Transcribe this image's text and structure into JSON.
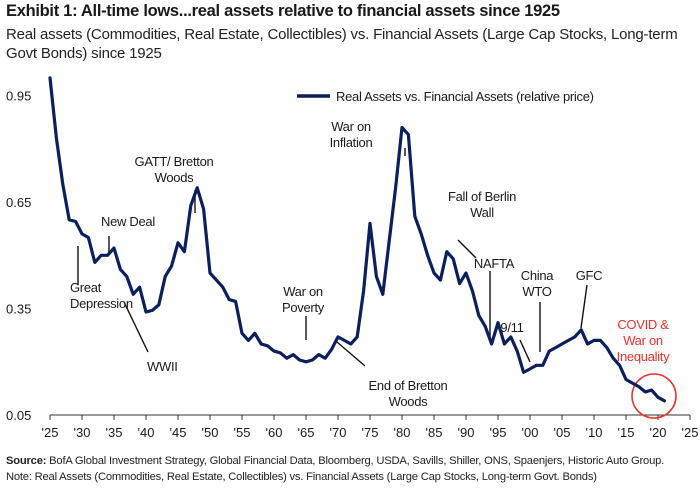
{
  "title": "Exhibit 1: All-time lows...real assets relative to financial assets since 1925",
  "subtitle": "Real assets (Commodities, Real Estate, Collectibles) vs. Financial Assets (Large Cap Stocks, Long-term Govt Bonds) since 1925",
  "footnote": {
    "source_label": "Source:",
    "source_text": " BofA Global Investment Strategy, Global Financial Data, Bloomberg, USDA, Savills, Shiller, ONS, Spaenjers, Historic Auto Group.",
    "note": "Note: Real Assets (Commodities, Real Estate, Collectibles) vs. Financial Assets (Large Cap Stocks, Long-term Govt. Bonds)"
  },
  "colors": {
    "line": "#0b1f5c",
    "highlight": "#e8322e",
    "text": "#1a1a1a"
  },
  "chart_data": {
    "type": "line",
    "legend": {
      "label": "Real Assets vs. Financial Assets (relative price)",
      "position": "top-center"
    },
    "xlim": [
      1925,
      2025
    ],
    "ylim": [
      0.05,
      1.05
    ],
    "grid": false,
    "x_ticks": [
      {
        "value": 1925,
        "label": "'25"
      },
      {
        "value": 1930,
        "label": "'30"
      },
      {
        "value": 1935,
        "label": "'35"
      },
      {
        "value": 1940,
        "label": "'40"
      },
      {
        "value": 1945,
        "label": "'45"
      },
      {
        "value": 1950,
        "label": "'50"
      },
      {
        "value": 1955,
        "label": "'55"
      },
      {
        "value": 1960,
        "label": "'60"
      },
      {
        "value": 1965,
        "label": "'65"
      },
      {
        "value": 1970,
        "label": "'70"
      },
      {
        "value": 1975,
        "label": "'75"
      },
      {
        "value": 1980,
        "label": "'80"
      },
      {
        "value": 1985,
        "label": "'85"
      },
      {
        "value": 1990,
        "label": "'90"
      },
      {
        "value": 1995,
        "label": "'95"
      },
      {
        "value": 2000,
        "label": "'00"
      },
      {
        "value": 2005,
        "label": "'05"
      },
      {
        "value": 2010,
        "label": "'10"
      },
      {
        "value": 2015,
        "label": "'15"
      },
      {
        "value": 2020,
        "label": "'20"
      },
      {
        "value": 2025,
        "label": "'25"
      }
    ],
    "y_ticks": [
      {
        "value": 0.95,
        "label": "0.95"
      },
      {
        "value": 0.65,
        "label": "0.65"
      },
      {
        "value": 0.35,
        "label": "0.35"
      },
      {
        "value": 0.05,
        "label": "0.05"
      }
    ],
    "series": [
      {
        "name": "Real Assets vs. Financial Assets (relative price)",
        "x": [
          1925,
          1926,
          1927,
          1928,
          1929,
          1930,
          1931,
          1932,
          1933,
          1934,
          1935,
          1936,
          1937,
          1938,
          1939,
          1940,
          1941,
          1942,
          1943,
          1944,
          1945,
          1946,
          1947,
          1948,
          1949,
          1950,
          1951,
          1952,
          1953,
          1954,
          1955,
          1956,
          1957,
          1958,
          1959,
          1960,
          1961,
          1962,
          1963,
          1964,
          1965,
          1966,
          1967,
          1968,
          1969,
          1970,
          1971,
          1972,
          1973,
          1974,
          1975,
          1976,
          1977,
          1978,
          1979,
          1980,
          1981,
          1982,
          1983,
          1984,
          1985,
          1986,
          1987,
          1988,
          1989,
          1990,
          1991,
          1992,
          1993,
          1994,
          1995,
          1996,
          1997,
          1998,
          1999,
          2000,
          2001,
          2002,
          2003,
          2004,
          2005,
          2006,
          2007,
          2008,
          2009,
          2010,
          2011,
          2012,
          2013,
          2014,
          2015,
          2016,
          2017,
          2018,
          2019,
          2020,
          2021
        ],
        "y": [
          1.0,
          0.83,
          0.7,
          0.6,
          0.595,
          0.56,
          0.55,
          0.48,
          0.5,
          0.5,
          0.52,
          0.46,
          0.44,
          0.39,
          0.41,
          0.34,
          0.345,
          0.36,
          0.44,
          0.47,
          0.535,
          0.51,
          0.64,
          0.69,
          0.63,
          0.45,
          0.43,
          0.41,
          0.375,
          0.37,
          0.28,
          0.26,
          0.28,
          0.25,
          0.245,
          0.23,
          0.225,
          0.21,
          0.22,
          0.205,
          0.2,
          0.205,
          0.22,
          0.21,
          0.235,
          0.27,
          0.26,
          0.25,
          0.27,
          0.4,
          0.59,
          0.44,
          0.39,
          0.54,
          0.69,
          0.86,
          0.84,
          0.61,
          0.56,
          0.5,
          0.45,
          0.43,
          0.51,
          0.49,
          0.42,
          0.45,
          0.4,
          0.33,
          0.3,
          0.25,
          0.31,
          0.25,
          0.27,
          0.23,
          0.17,
          0.18,
          0.19,
          0.19,
          0.23,
          0.24,
          0.25,
          0.26,
          0.27,
          0.29,
          0.25,
          0.26,
          0.26,
          0.24,
          0.21,
          0.19,
          0.15,
          0.14,
          0.13,
          0.115,
          0.12,
          0.1,
          0.09
        ]
      }
    ],
    "annotations": [
      {
        "lines": [
          "Great",
          "Depression"
        ],
        "x": 1928,
        "color": "#1a1a1a"
      },
      {
        "lines": [
          "New Deal"
        ],
        "x": 1933,
        "color": "#1a1a1a"
      },
      {
        "lines": [
          "WWII"
        ],
        "x": 1939,
        "color": "#1a1a1a"
      },
      {
        "lines": [
          "GATT/ Bretton",
          "Woods"
        ],
        "x": 1947,
        "color": "#1a1a1a"
      },
      {
        "lines": [
          "War on",
          "Poverty"
        ],
        "x": 1964,
        "color": "#1a1a1a"
      },
      {
        "lines": [
          "End of Bretton",
          "Woods"
        ],
        "x": 1971,
        "color": "#1a1a1a"
      },
      {
        "lines": [
          "War on",
          "Inflation"
        ],
        "x": 1980,
        "color": "#1a1a1a"
      },
      {
        "lines": [
          "Fall of Berlin",
          "Wall"
        ],
        "x": 1989,
        "color": "#1a1a1a"
      },
      {
        "lines": [
          "NAFTA"
        ],
        "x": 1994,
        "color": "#1a1a1a"
      },
      {
        "lines": [
          "9/11"
        ],
        "x": 2001,
        "color": "#1a1a1a"
      },
      {
        "lines": [
          "China",
          "WTO"
        ],
        "x": 2001,
        "color": "#1a1a1a"
      },
      {
        "lines": [
          "GFC"
        ],
        "x": 2008,
        "color": "#1a1a1a"
      },
      {
        "lines": [
          "COVID &",
          "War on",
          "Inequality"
        ],
        "x": 2020,
        "color": "#e8322e"
      }
    ]
  }
}
